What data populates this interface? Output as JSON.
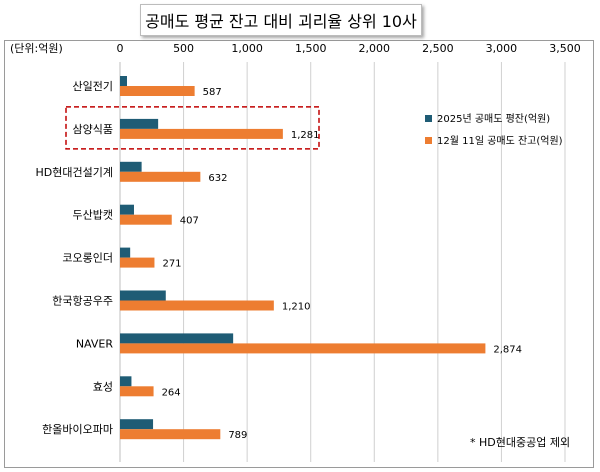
{
  "chart_data": {
    "type": "bar",
    "orientation": "horizontal",
    "title": "공매도 평균 잔고 대비 괴리율 상위 10사",
    "unit_label": "(단위:억원)",
    "xlim": [
      0,
      3500
    ],
    "xticks": [
      "0",
      "500",
      "1,000",
      "1,500",
      "2,000",
      "2,500",
      "3,000",
      "3,500"
    ],
    "grid": true,
    "legend_position": "right",
    "categories": [
      "산일전기",
      "삼양식품",
      "HD현대건설기계",
      "두산밥캣",
      "코오롱인더",
      "한국항공우주",
      "NAVER",
      "효성",
      "한올바이오파마"
    ],
    "series": [
      {
        "name": "2025년 공매도 평잔(억원)",
        "color": "#1f5c75",
        "values": [
          55,
          300,
          170,
          110,
          80,
          360,
          890,
          90,
          260
        ]
      },
      {
        "name": "12월 11일 공매도 잔고(억원)",
        "color": "#ed7d31",
        "values": [
          587,
          1281,
          632,
          407,
          271,
          1210,
          2874,
          264,
          789
        ],
        "data_labels": [
          "587",
          "1,281",
          "632",
          "407",
          "271",
          "1,210",
          "2,874",
          "264",
          "789"
        ]
      }
    ],
    "highlight_category": "삼양식품",
    "footnote": "* HD현대중공업 제외"
  }
}
